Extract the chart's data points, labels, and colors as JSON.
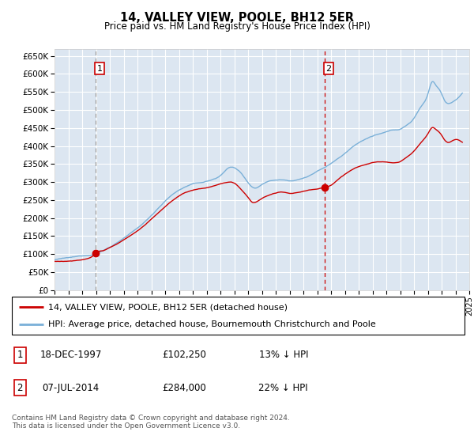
{
  "title": "14, VALLEY VIEW, POOLE, BH12 5ER",
  "subtitle": "Price paid vs. HM Land Registry's House Price Index (HPI)",
  "background_color": "#dce6f1",
  "ylim": [
    0,
    670000
  ],
  "yticks": [
    0,
    50000,
    100000,
    150000,
    200000,
    250000,
    300000,
    350000,
    400000,
    450000,
    500000,
    550000,
    600000,
    650000
  ],
  "ytick_labels": [
    "£0",
    "£50K",
    "£100K",
    "£150K",
    "£200K",
    "£250K",
    "£300K",
    "£350K",
    "£400K",
    "£450K",
    "£500K",
    "£550K",
    "£600K",
    "£650K"
  ],
  "sale1_date": 1997.96,
  "sale1_price": 102250,
  "sale1_label": "1",
  "sale2_date": 2014.52,
  "sale2_price": 284000,
  "sale2_label": "2",
  "legend_line1": "14, VALLEY VIEW, POOLE, BH12 5ER (detached house)",
  "legend_line2": "HPI: Average price, detached house, Bournemouth Christchurch and Poole",
  "table_row1": [
    "1",
    "18-DEC-1997",
    "£102,250",
    "13% ↓ HPI"
  ],
  "table_row2": [
    "2",
    "07-JUL-2014",
    "£284,000",
    "22% ↓ HPI"
  ],
  "footnote": "Contains HM Land Registry data © Crown copyright and database right 2024.\nThis data is licensed under the Open Government Licence v3.0.",
  "line_color_red": "#cc0000",
  "line_color_blue": "#7ab0d8",
  "dashed1_color": "#aaaaaa",
  "dashed2_color": "#cc0000",
  "xlim_start": 1995,
  "xlim_end": 2025
}
